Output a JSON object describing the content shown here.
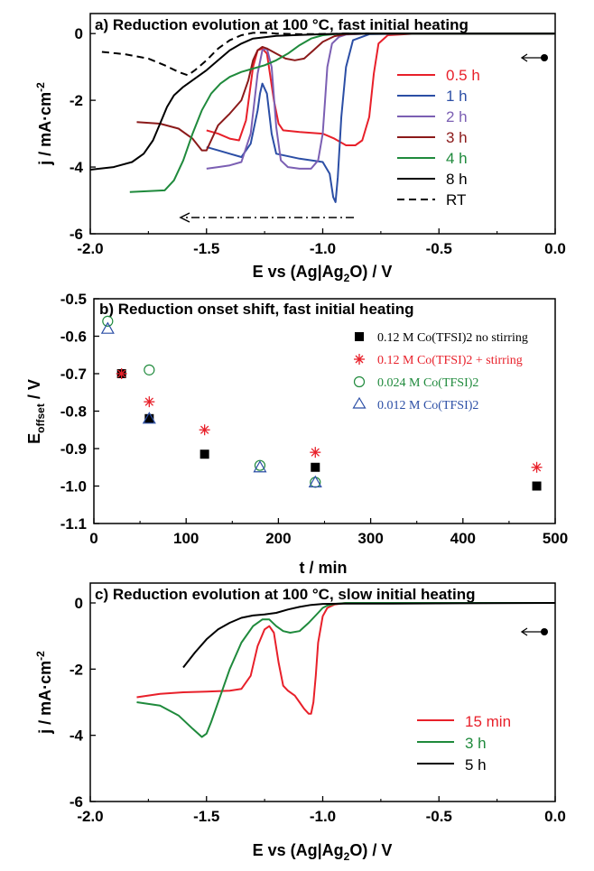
{
  "chart_data": [
    {
      "type": "line",
      "panel": "a",
      "title": "a) Reduction evolution at 100 °C, fast initial heating",
      "xlabel": "E vs (Ag|Ag2O) / V",
      "ylabel": "j / mA·cm-2",
      "xlim": [
        -2.0,
        0.0
      ],
      "ylim": [
        -6,
        0.6
      ],
      "xticks": [
        "-2.0",
        "-1.5",
        "-1.0",
        "-0.5",
        "0.0"
      ],
      "yticks": [
        "0",
        "-2",
        "-4",
        "-6"
      ],
      "legend_position": "right",
      "series": [
        {
          "name": "0.5 h",
          "color": "#e8202a",
          "dash": "",
          "x": [
            -1.5,
            -1.45,
            -1.4,
            -1.36,
            -1.33,
            -1.3,
            -1.28,
            -1.26,
            -1.24,
            -1.21,
            -1.19,
            -1.17,
            -1.1,
            -1.0,
            -0.95,
            -0.9,
            -0.86,
            -0.83,
            -0.8,
            -0.78,
            -0.76,
            -0.72,
            -0.6,
            -0.3,
            0.0
          ],
          "y": [
            -2.9,
            -3.0,
            -3.15,
            -3.2,
            -2.6,
            -1.0,
            -0.5,
            -0.45,
            -0.6,
            -2.0,
            -2.7,
            -2.9,
            -2.95,
            -3.0,
            -3.15,
            -3.35,
            -3.35,
            -3.2,
            -2.5,
            -1.2,
            -0.3,
            -0.05,
            0.0,
            0.0,
            0.0
          ]
        },
        {
          "name": "1 h",
          "color": "#2b4ea5",
          "dash": "",
          "x": [
            -1.5,
            -1.45,
            -1.4,
            -1.35,
            -1.31,
            -1.28,
            -1.27,
            -1.26,
            -1.24,
            -1.22,
            -1.2,
            -1.1,
            -1.0,
            -0.97,
            -0.955,
            -0.945,
            -0.935,
            -0.92,
            -0.9,
            -0.87,
            -0.8,
            -0.6,
            -0.3,
            0.0
          ],
          "y": [
            -3.4,
            -3.5,
            -3.6,
            -3.7,
            -3.3,
            -2.3,
            -1.8,
            -1.5,
            -1.8,
            -3.0,
            -3.6,
            -3.75,
            -3.85,
            -4.2,
            -4.9,
            -5.05,
            -4.3,
            -2.5,
            -1.0,
            -0.2,
            -0.02,
            0.0,
            0.0,
            0.0
          ]
        },
        {
          "name": "2 h",
          "color": "#7b5fb3",
          "dash": "",
          "x": [
            -1.5,
            -1.45,
            -1.4,
            -1.35,
            -1.31,
            -1.28,
            -1.26,
            -1.24,
            -1.22,
            -1.2,
            -1.18,
            -1.15,
            -1.1,
            -1.05,
            -1.02,
            -1.0,
            -0.99,
            -0.98,
            -0.96,
            -0.93,
            -0.9,
            -0.8,
            -0.6,
            -0.3,
            0.0
          ],
          "y": [
            -4.05,
            -4.0,
            -3.95,
            -3.85,
            -3.0,
            -1.2,
            -0.5,
            -0.45,
            -1.0,
            -2.8,
            -3.8,
            -4.0,
            -4.05,
            -4.05,
            -3.8,
            -3.0,
            -2.0,
            -1.0,
            -0.3,
            -0.1,
            -0.03,
            0.0,
            0.0,
            0.0,
            0.0
          ]
        },
        {
          "name": "3 h",
          "color": "#8b1a1a",
          "dash": "",
          "x": [
            -1.8,
            -1.7,
            -1.62,
            -1.56,
            -1.52,
            -1.5,
            -1.48,
            -1.45,
            -1.4,
            -1.35,
            -1.32,
            -1.3,
            -1.28,
            -1.26,
            -1.24,
            -1.2,
            -1.16,
            -1.12,
            -1.08,
            -1.04,
            -1.0,
            -0.95,
            -0.9,
            -0.8,
            -0.6,
            -0.3,
            0.0
          ],
          "y": [
            -2.65,
            -2.7,
            -2.85,
            -3.15,
            -3.5,
            -3.5,
            -3.2,
            -2.75,
            -2.4,
            -2.0,
            -1.4,
            -0.8,
            -0.5,
            -0.4,
            -0.45,
            -0.6,
            -0.75,
            -0.8,
            -0.75,
            -0.5,
            -0.25,
            -0.08,
            -0.02,
            0.0,
            0.0,
            0.0,
            0.0
          ]
        },
        {
          "name": "4 h",
          "color": "#1f8a3c",
          "dash": "",
          "x": [
            -1.83,
            -1.75,
            -1.68,
            -1.64,
            -1.6,
            -1.56,
            -1.52,
            -1.48,
            -1.44,
            -1.4,
            -1.35,
            -1.3,
            -1.25,
            -1.2,
            -1.15,
            -1.1,
            -1.05,
            -1.0,
            -0.95,
            -0.9,
            -0.8,
            -0.6,
            -0.3,
            0.0
          ],
          "y": [
            -4.75,
            -4.72,
            -4.7,
            -4.4,
            -3.8,
            -3.0,
            -2.3,
            -1.8,
            -1.5,
            -1.3,
            -1.15,
            -1.05,
            -0.95,
            -0.8,
            -0.6,
            -0.35,
            -0.15,
            -0.05,
            -0.02,
            0.0,
            0.0,
            0.0,
            0.0,
            0.0
          ]
        },
        {
          "name": "8 h",
          "color": "#000000",
          "dash": "",
          "x": [
            -2.0,
            -1.9,
            -1.82,
            -1.77,
            -1.73,
            -1.7,
            -1.67,
            -1.64,
            -1.6,
            -1.55,
            -1.5,
            -1.45,
            -1.4,
            -1.35,
            -1.3,
            -1.2,
            -1.1,
            -1.0,
            -0.9,
            -0.8,
            -0.7,
            -0.5,
            -0.3,
            0.0
          ],
          "y": [
            -4.08,
            -4.0,
            -3.85,
            -3.6,
            -3.2,
            -2.7,
            -2.2,
            -1.85,
            -1.6,
            -1.35,
            -1.1,
            -0.8,
            -0.5,
            -0.3,
            -0.15,
            -0.07,
            -0.04,
            -0.02,
            0.0,
            0.0,
            0.0,
            0.0,
            0.0,
            0.0
          ]
        },
        {
          "name": "RT",
          "color": "#000000",
          "dash": "8,5",
          "x": [
            -1.95,
            -1.85,
            -1.75,
            -1.68,
            -1.62,
            -1.58,
            -1.55,
            -1.5,
            -1.45,
            -1.4,
            -1.35,
            -1.3,
            -1.25,
            -1.2,
            -1.1,
            -1.0,
            -0.9,
            -0.8
          ],
          "y": [
            -0.55,
            -0.62,
            -0.75,
            -0.95,
            -1.15,
            -1.25,
            -1.1,
            -0.8,
            -0.45,
            -0.2,
            -0.05,
            0.02,
            0.03,
            0.0,
            -0.02,
            -0.01,
            0.0,
            0.0
          ]
        }
      ],
      "annotations": {
        "scan_arrow_start_V": -0.02,
        "scan_arrow_end_V": -0.15,
        "scan_arrow_j": -0.4,
        "dashdot_arrow_from_V": -0.85,
        "dashdot_arrow_to_V": -1.6,
        "dashdot_arrow_j": -5.6
      }
    },
    {
      "type": "scatter",
      "panel": "b",
      "title": "b) Reduction onset shift, fast initial heating",
      "xlabel": "t / min",
      "ylabel": "Eoffset / V",
      "xlim": [
        0,
        500
      ],
      "ylim": [
        -1.1,
        -0.5
      ],
      "xticks": [
        "0",
        "100",
        "200",
        "300",
        "400",
        "500"
      ],
      "yticks": [
        "-0.5",
        "-0.6",
        "-0.7",
        "-0.8",
        "-0.9",
        "-1.0",
        "-1.1"
      ],
      "legend_position": "top-right",
      "series": [
        {
          "name": "0.12 M Co(TFSI)2 no stirring",
          "color": "#000000",
          "marker": "square",
          "x": [
            30,
            60,
            120,
            240,
            480
          ],
          "y": [
            -0.7,
            -0.82,
            -0.915,
            -0.95,
            -1.0
          ]
        },
        {
          "name": "0.12 M Co(TFSI)2 + stirring",
          "color": "#e8202a",
          "marker": "asterisk",
          "x": [
            30,
            60,
            120,
            240,
            480
          ],
          "y": [
            -0.7,
            -0.775,
            -0.85,
            -0.91,
            -0.95
          ]
        },
        {
          "name": "0.024 M Co(TFSI)2",
          "color": "#1f8a3c",
          "marker": "circle",
          "x": [
            15,
            60,
            180,
            240
          ],
          "y": [
            -0.56,
            -0.69,
            -0.945,
            -0.99
          ]
        },
        {
          "name": "0.012 M Co(TFSI)2",
          "color": "#2b4ea5",
          "marker": "triangle",
          "x": [
            15,
            60,
            180,
            240
          ],
          "y": [
            -0.58,
            -0.82,
            -0.95,
            -0.99
          ]
        }
      ]
    },
    {
      "type": "line",
      "panel": "c",
      "title": "c) Reduction evolution at 100 °C, slow initial heating",
      "xlabel": "E vs (Ag|Ag2O) / V",
      "ylabel": "j / mA·cm-2",
      "xlim": [
        -2.0,
        0.0
      ],
      "ylim": [
        -6,
        0.6
      ],
      "xticks": [
        "-2.0",
        "-1.5",
        "-1.0",
        "-0.5",
        "0.0"
      ],
      "yticks": [
        "0",
        "-2",
        "-4",
        "-6"
      ],
      "legend_position": "bottom-right",
      "series": [
        {
          "name": "15 min",
          "color": "#e8202a",
          "dash": "",
          "x": [
            -1.8,
            -1.7,
            -1.6,
            -1.5,
            -1.4,
            -1.35,
            -1.31,
            -1.28,
            -1.25,
            -1.23,
            -1.21,
            -1.19,
            -1.17,
            -1.15,
            -1.12,
            -1.1,
            -1.08,
            -1.06,
            -1.05,
            -1.04,
            -1.03,
            -1.02,
            -1.0,
            -0.98,
            -0.95,
            -0.9,
            -0.6,
            -0.3,
            0.0
          ],
          "y": [
            -2.85,
            -2.75,
            -2.7,
            -2.68,
            -2.65,
            -2.6,
            -2.2,
            -1.3,
            -0.8,
            -0.7,
            -0.9,
            -1.8,
            -2.5,
            -2.65,
            -2.8,
            -3.0,
            -3.2,
            -3.35,
            -3.35,
            -3.0,
            -2.2,
            -1.2,
            -0.4,
            -0.15,
            -0.05,
            0.0,
            0.0,
            0.0,
            0.0
          ]
        },
        {
          "name": "3 h",
          "color": "#1f8a3c",
          "dash": "",
          "x": [
            -1.8,
            -1.7,
            -1.62,
            -1.56,
            -1.52,
            -1.5,
            -1.48,
            -1.44,
            -1.4,
            -1.35,
            -1.3,
            -1.26,
            -1.23,
            -1.2,
            -1.17,
            -1.14,
            -1.1,
            -1.06,
            -1.02,
            -1.0,
            -0.98,
            -0.95,
            -0.9,
            -0.6,
            -0.3,
            0.0
          ],
          "y": [
            -3.0,
            -3.1,
            -3.4,
            -3.8,
            -4.05,
            -3.95,
            -3.6,
            -2.8,
            -2.0,
            -1.2,
            -0.7,
            -0.5,
            -0.5,
            -0.7,
            -0.85,
            -0.9,
            -0.85,
            -0.6,
            -0.3,
            -0.15,
            -0.08,
            -0.03,
            0.0,
            0.0,
            0.0,
            0.0
          ]
        },
        {
          "name": "5 h",
          "color": "#000000",
          "dash": "",
          "x": [
            -1.6,
            -1.55,
            -1.5,
            -1.45,
            -1.4,
            -1.35,
            -1.3,
            -1.25,
            -1.2,
            -1.15,
            -1.1,
            -1.05,
            -1.0,
            -0.9,
            -0.7,
            -0.4,
            0.0
          ],
          "y": [
            -1.95,
            -1.5,
            -1.1,
            -0.8,
            -0.6,
            -0.45,
            -0.38,
            -0.35,
            -0.3,
            -0.2,
            -0.12,
            -0.06,
            -0.03,
            -0.02,
            -0.02,
            -0.01,
            0.0
          ]
        }
      ],
      "annotations": {
        "scan_arrow_start_V": -0.02,
        "scan_arrow_end_V": -0.15,
        "scan_arrow_j": -0.4
      }
    }
  ]
}
